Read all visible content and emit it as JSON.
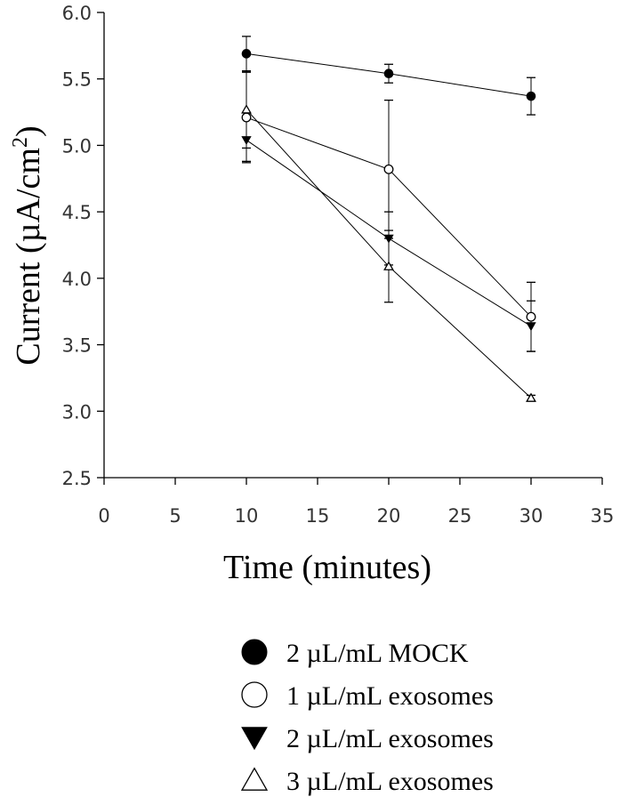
{
  "chart_data": {
    "type": "line",
    "title": "",
    "xlabel": "Time (minutes)",
    "ylabel_main": "Current (µA/cm",
    "ylabel_sup": "2",
    "ylabel_close": ")",
    "xlim": [
      0,
      35
    ],
    "ylim": [
      2.5,
      6.0
    ],
    "x_ticks": [
      "0",
      "5",
      "10",
      "15",
      "20",
      "25",
      "30",
      "35"
    ],
    "y_ticks": [
      "2.5",
      "3.0",
      "3.5",
      "4.0",
      "4.5",
      "5.0",
      "5.5",
      "6.0"
    ],
    "grid": false,
    "legend_position": "bottom-right, below plot",
    "x": [
      10,
      20,
      30
    ],
    "series": [
      {
        "name": "2 µL/mL MOCK",
        "marker": "circle-filled",
        "values": [
          5.69,
          5.54,
          5.37
        ],
        "errors": [
          0.13,
          0.07,
          0.14
        ]
      },
      {
        "name": "1 µL/mL exosomes",
        "marker": "circle-open",
        "values": [
          5.21,
          4.82,
          3.71
        ],
        "errors": [
          0.34,
          0.52,
          0.26
        ]
      },
      {
        "name": "2 µL/mL exosomes",
        "marker": "triangle-down-filled",
        "values": [
          5.04,
          4.3,
          3.64
        ],
        "errors": [
          0.16,
          0.2,
          0.19
        ]
      },
      {
        "name": "3 µL/mL exosomes",
        "marker": "triangle-up-open",
        "values": [
          5.27,
          4.09,
          3.1
        ],
        "errors": [
          0.29,
          0.27,
          0.02
        ]
      }
    ]
  }
}
